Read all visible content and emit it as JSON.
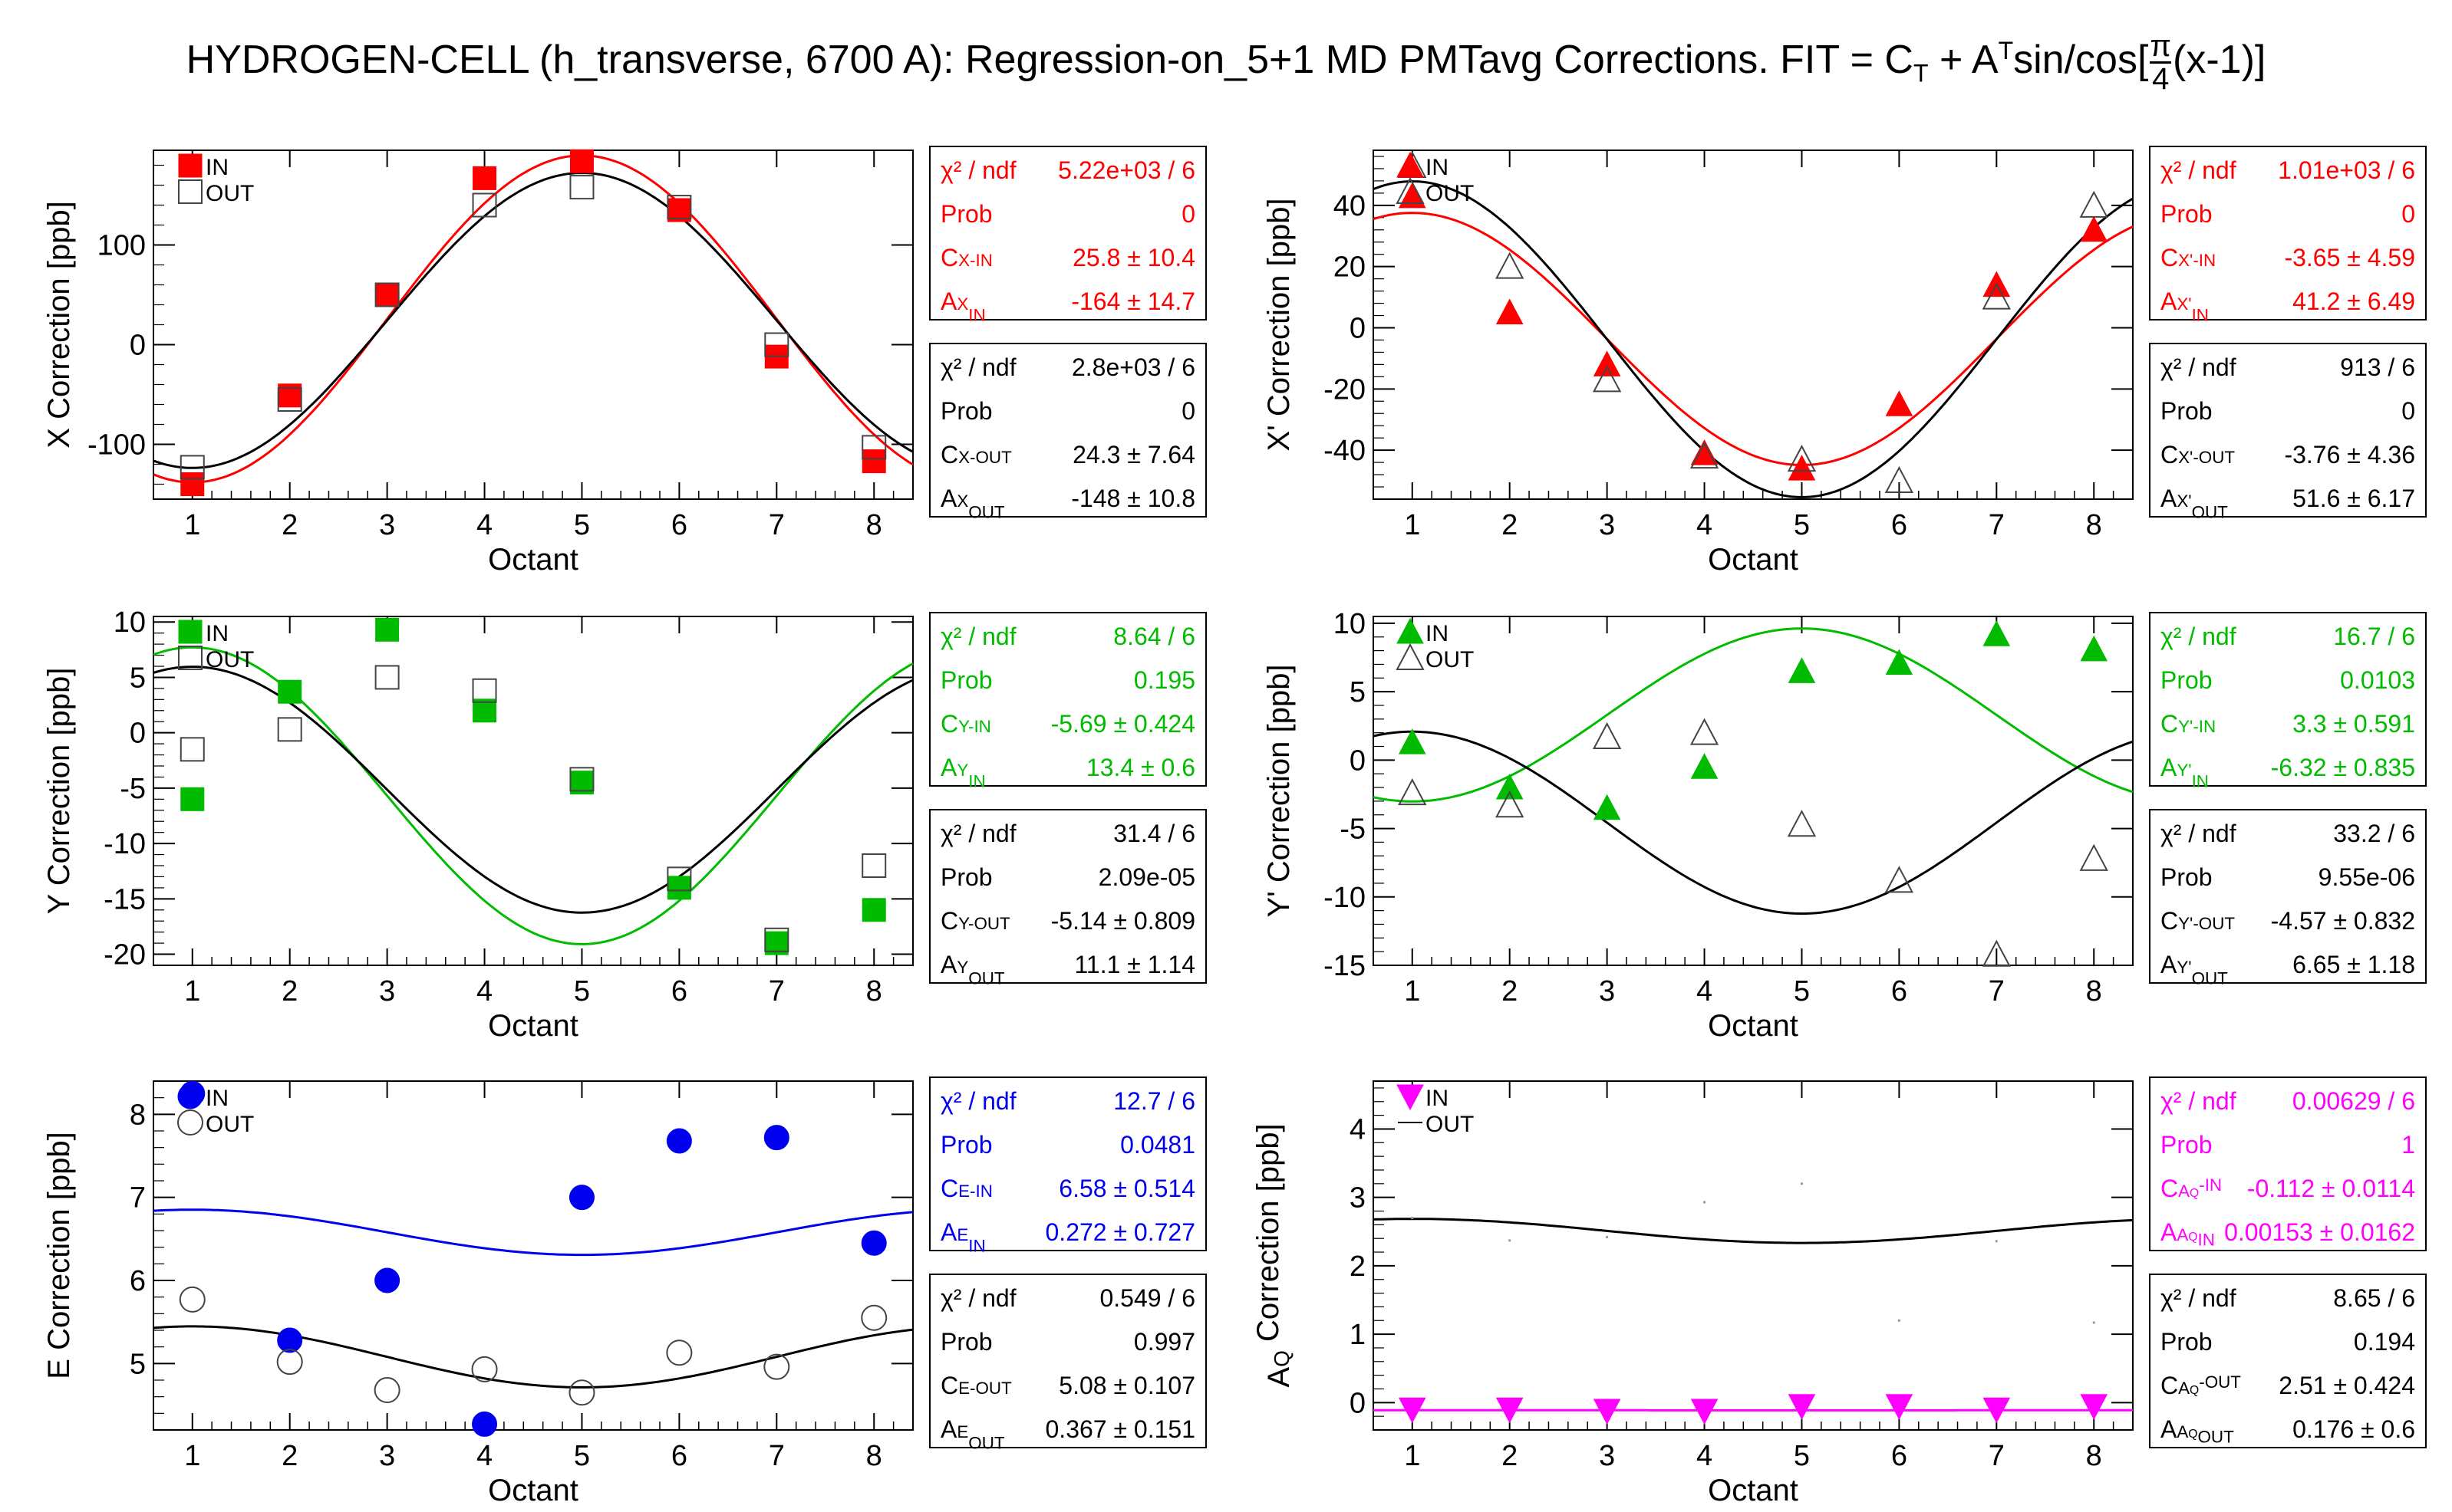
{
  "title": {
    "text": "HYDROGEN-CELL (h_transverse, 6700 A): Regression-on_5+1 MD PMTavg Corrections. FIT = C",
    "sub_t": "T",
    "plus": " + A",
    "sup_t": "T",
    "func": "sin/cos[",
    "frac_num": "π",
    "frac_den": "4",
    "tail": "(x-1)]"
  },
  "colors": {
    "red": "#ff0000",
    "green": "#00bb00",
    "blue": "#0000ee",
    "magenta": "#ff00ff",
    "black": "#000000"
  },
  "chart_data": [
    {
      "type": "scatter",
      "id": "x",
      "ylabel": "X Correction [ppb]",
      "xlabel": "Octant",
      "xlim": [
        0.6,
        8.4
      ],
      "ylim": [
        -155,
        195
      ],
      "yticks": [
        -100,
        0,
        100
      ],
      "in_color": "red",
      "marker": "square",
      "legend": [
        "IN",
        "OUT"
      ],
      "series": [
        {
          "name": "IN",
          "x": [
            1,
            2,
            3,
            4,
            5,
            6,
            7,
            8
          ],
          "y": [
            -140,
            -51,
            50,
            167,
            184,
            135,
            -12,
            -117
          ]
        },
        {
          "name": "OUT",
          "x": [
            1,
            2,
            3,
            4,
            5,
            6,
            7,
            8
          ],
          "y": [
            -123,
            -55,
            50,
            140,
            158,
            138,
            0,
            -103
          ]
        }
      ],
      "fits": [
        {
          "name": "IN",
          "C": 25.8,
          "A": -164
        },
        {
          "name": "OUT",
          "C": 24.3,
          "A": -148
        }
      ],
      "stats": [
        {
          "rows": [
            {
              "label": "χ² / ndf",
              "value": "5.22e+03 / 6"
            },
            {
              "label": "Prob",
              "value": "0"
            },
            {
              "label": "C_{X-IN}",
              "value": "25.8 ± 10.4"
            },
            {
              "label": "A^{X}_{IN}",
              "value": "-164 ± 14.7"
            }
          ]
        },
        {
          "rows": [
            {
              "label": "χ² / ndf",
              "value": "2.8e+03 / 6"
            },
            {
              "label": "Prob",
              "value": "0"
            },
            {
              "label": "C_{X-OUT}",
              "value": "24.3 ± 7.64"
            },
            {
              "label": "A^{X}_{OUT}",
              "value": "-148 ± 10.8"
            }
          ]
        }
      ]
    },
    {
      "type": "scatter",
      "id": "xp",
      "ylabel": "X' Correction [ppb]",
      "xlabel": "Octant",
      "xlim": [
        0.6,
        8.4
      ],
      "ylim": [
        -56,
        58
      ],
      "yticks": [
        -40,
        -20,
        0,
        20,
        40
      ],
      "in_color": "red",
      "marker": "triangle-up",
      "legend": [
        "IN",
        "OUT"
      ],
      "series": [
        {
          "name": "IN",
          "x": [
            1,
            2,
            3,
            4,
            5,
            6,
            7,
            8
          ],
          "y": [
            43,
            5,
            -12,
            -41,
            -46,
            -25,
            14,
            32
          ]
        },
        {
          "name": "OUT",
          "x": [
            1,
            2,
            3,
            4,
            5,
            6,
            7,
            8
          ],
          "y": [
            53,
            20,
            -17,
            -42,
            -43,
            -50,
            10,
            40
          ]
        }
      ],
      "fits": [
        {
          "name": "IN",
          "C": -3.65,
          "A": 41.2
        },
        {
          "name": "OUT",
          "C": -3.76,
          "A": 51.6
        }
      ],
      "stats": [
        {
          "rows": [
            {
              "label": "χ² / ndf",
              "value": "1.01e+03 / 6"
            },
            {
              "label": "Prob",
              "value": "0"
            },
            {
              "label": "C_{X'-IN}",
              "value": "-3.65 ± 4.59"
            },
            {
              "label": "A^{X'}_{IN}",
              "value": "41.2 ± 6.49"
            }
          ]
        },
        {
          "rows": [
            {
              "label": "χ² / ndf",
              "value": "913 / 6"
            },
            {
              "label": "Prob",
              "value": "0"
            },
            {
              "label": "C_{X'-OUT}",
              "value": "-3.76 ± 4.36"
            },
            {
              "label": "A^{X'}_{OUT}",
              "value": "51.6 ± 6.17"
            }
          ]
        }
      ]
    },
    {
      "type": "scatter",
      "id": "y",
      "ylabel": "Y Correction [ppb]",
      "xlabel": "Octant",
      "xlim": [
        0.6,
        8.4
      ],
      "ylim": [
        -21,
        10.5
      ],
      "yticks": [
        -20,
        -15,
        -10,
        -5,
        0,
        5,
        10
      ],
      "in_color": "green",
      "marker": "square",
      "legend": [
        "IN",
        "OUT"
      ],
      "series": [
        {
          "name": "IN",
          "x": [
            1,
            2,
            3,
            4,
            5,
            6,
            7,
            8
          ],
          "y": [
            -6,
            3.7,
            9.3,
            2,
            -4.5,
            -14,
            -19,
            -16
          ]
        },
        {
          "name": "OUT",
          "x": [
            1,
            2,
            3,
            4,
            5,
            6,
            7,
            8
          ],
          "y": [
            -1.5,
            0.3,
            5,
            3.8,
            -4.2,
            -13.2,
            -18.7,
            -12
          ]
        }
      ],
      "fits": [
        {
          "name": "IN",
          "C": -5.69,
          "A": 13.4
        },
        {
          "name": "OUT",
          "C": -5.14,
          "A": 11.1
        }
      ],
      "stats": [
        {
          "rows": [
            {
              "label": "χ² / ndf",
              "value": "8.64 / 6"
            },
            {
              "label": "Prob",
              "value": "0.195"
            },
            {
              "label": "C_{Y-IN}",
              "value": "-5.69 ± 0.424"
            },
            {
              "label": "A^{Y}_{IN}",
              "value": "13.4 ± 0.6"
            }
          ]
        },
        {
          "rows": [
            {
              "label": "χ² / ndf",
              "value": "31.4 / 6"
            },
            {
              "label": "Prob",
              "value": "2.09e-05"
            },
            {
              "label": "C_{Y-OUT}",
              "value": "-5.14 ± 0.809"
            },
            {
              "label": "A^{Y}_{OUT}",
              "value": "11.1 ± 1.14"
            }
          ]
        }
      ]
    },
    {
      "type": "scatter",
      "id": "yp",
      "ylabel": "Y' Correction [ppb]",
      "xlabel": "Octant",
      "xlim": [
        0.6,
        8.4
      ],
      "ylim": [
        -15,
        10.5
      ],
      "yticks": [
        -15,
        -10,
        -5,
        0,
        5,
        10
      ],
      "in_color": "green",
      "marker": "triangle-up",
      "legend": [
        "IN",
        "OUT"
      ],
      "series": [
        {
          "name": "IN",
          "x": [
            1,
            2,
            3,
            4,
            5,
            6,
            7,
            8
          ],
          "y": [
            1.3,
            -2,
            -3.5,
            -0.5,
            6.5,
            7.1,
            9.2,
            8.1
          ]
        },
        {
          "name": "OUT",
          "x": [
            1,
            2,
            3,
            4,
            5,
            6,
            7,
            8
          ],
          "y": [
            -2.4,
            -3.3,
            1.7,
            2,
            -4.7,
            -8.8,
            -14.2,
            -7.2
          ]
        }
      ],
      "fits": [
        {
          "name": "IN",
          "C": 3.3,
          "A": -6.32
        },
        {
          "name": "OUT",
          "C": -4.57,
          "A": 6.65
        }
      ],
      "stats": [
        {
          "rows": [
            {
              "label": "χ² / ndf",
              "value": "16.7 / 6"
            },
            {
              "label": "Prob",
              "value": "0.0103"
            },
            {
              "label": "C_{Y'-IN}",
              "value": "3.3 ± 0.591"
            },
            {
              "label": "A^{Y'}_{IN}",
              "value": "-6.32 ± 0.835"
            }
          ]
        },
        {
          "rows": [
            {
              "label": "χ² / ndf",
              "value": "33.2 / 6"
            },
            {
              "label": "Prob",
              "value": "9.55e-06"
            },
            {
              "label": "C_{Y'-OUT}",
              "value": "-4.57 ± 0.832"
            },
            {
              "label": "A^{Y'}_{OUT}",
              "value": "6.65 ± 1.18"
            }
          ]
        }
      ]
    },
    {
      "type": "scatter",
      "id": "e",
      "ylabel": "E Correction [ppb]",
      "xlabel": "Octant",
      "xlim": [
        0.6,
        8.4
      ],
      "ylim": [
        4.2,
        8.4
      ],
      "yticks": [
        5,
        6,
        7,
        8
      ],
      "in_color": "blue",
      "marker": "circle",
      "legend": [
        "IN",
        "OUT"
      ],
      "series": [
        {
          "name": "IN",
          "x": [
            1,
            2,
            3,
            4,
            5,
            6,
            7,
            8
          ],
          "y": [
            8.25,
            5.28,
            6,
            4.27,
            7,
            7.68,
            7.72,
            6.45
          ]
        },
        {
          "name": "OUT",
          "x": [
            1,
            2,
            3,
            4,
            5,
            6,
            7,
            8
          ],
          "y": [
            5.77,
            5.02,
            4.68,
            4.93,
            4.65,
            5.13,
            4.96,
            5.55
          ]
        }
      ],
      "fits": [
        {
          "name": "IN",
          "C": 6.58,
          "A": 0.272
        },
        {
          "name": "OUT",
          "C": 5.08,
          "A": 0.367
        }
      ],
      "stats": [
        {
          "rows": [
            {
              "label": "χ² / ndf",
              "value": "12.7 / 6"
            },
            {
              "label": "Prob",
              "value": "0.0481"
            },
            {
              "label": "C_{E-IN}",
              "value": "6.58 ± 0.514"
            },
            {
              "label": "A^{E}_{IN}",
              "value": "0.272 ± 0.727"
            }
          ]
        },
        {
          "rows": [
            {
              "label": "χ² / ndf",
              "value": "0.549 / 6"
            },
            {
              "label": "Prob",
              "value": "0.997"
            },
            {
              "label": "C_{E-OUT}",
              "value": "5.08 ± 0.107"
            },
            {
              "label": "A^{E}_{OUT}",
              "value": "0.367 ± 0.151"
            }
          ]
        }
      ]
    },
    {
      "type": "scatter",
      "id": "aq",
      "ylabel": "A_{Q} Correction [ppb]",
      "xlabel": "Octant",
      "xlim": [
        0.6,
        8.4
      ],
      "ylim": [
        -0.4,
        4.7
      ],
      "yticks": [
        0,
        1,
        2,
        3,
        4
      ],
      "in_color": "magenta",
      "marker": "triangle-down",
      "legend": [
        "IN",
        "OUT"
      ],
      "series": [
        {
          "name": "IN",
          "x": [
            1,
            2,
            3,
            4,
            5,
            6,
            7,
            8
          ],
          "y": [
            -0.1,
            -0.1,
            -0.12,
            -0.12,
            -0.05,
            -0.05,
            -0.1,
            -0.05
          ]
        },
        {
          "name": "OUT",
          "x": [
            1,
            2,
            3,
            4,
            5,
            6,
            7,
            8
          ],
          "y": [
            2.7,
            2.37,
            2.42,
            2.93,
            3.2,
            1.2,
            2.36,
            1.17
          ]
        }
      ],
      "out_marker": "none",
      "fits": [
        {
          "name": "IN",
          "C": -0.112,
          "A": 0.00153
        },
        {
          "name": "OUT",
          "C": 2.51,
          "A": 0.176
        }
      ],
      "stats": [
        {
          "rows": [
            {
              "label": "χ² / ndf",
              "value": "0.00629 / 6"
            },
            {
              "label": "Prob",
              "value": "1"
            },
            {
              "label": "C_{A_{Q}-IN}",
              "value": "-0.112 ± 0.0114"
            },
            {
              "label": "A^{A_{Q}}_{IN}",
              "value": "0.00153 ± 0.0162"
            }
          ]
        },
        {
          "rows": [
            {
              "label": "χ² / ndf",
              "value": "8.65 / 6"
            },
            {
              "label": "Prob",
              "value": "0.194"
            },
            {
              "label": "C_{A_{Q}-OUT}",
              "value": "2.51 ± 0.424"
            },
            {
              "label": "A^{A_{Q}}_{OUT}",
              "value": "0.176 ± 0.6"
            }
          ]
        }
      ]
    }
  ]
}
